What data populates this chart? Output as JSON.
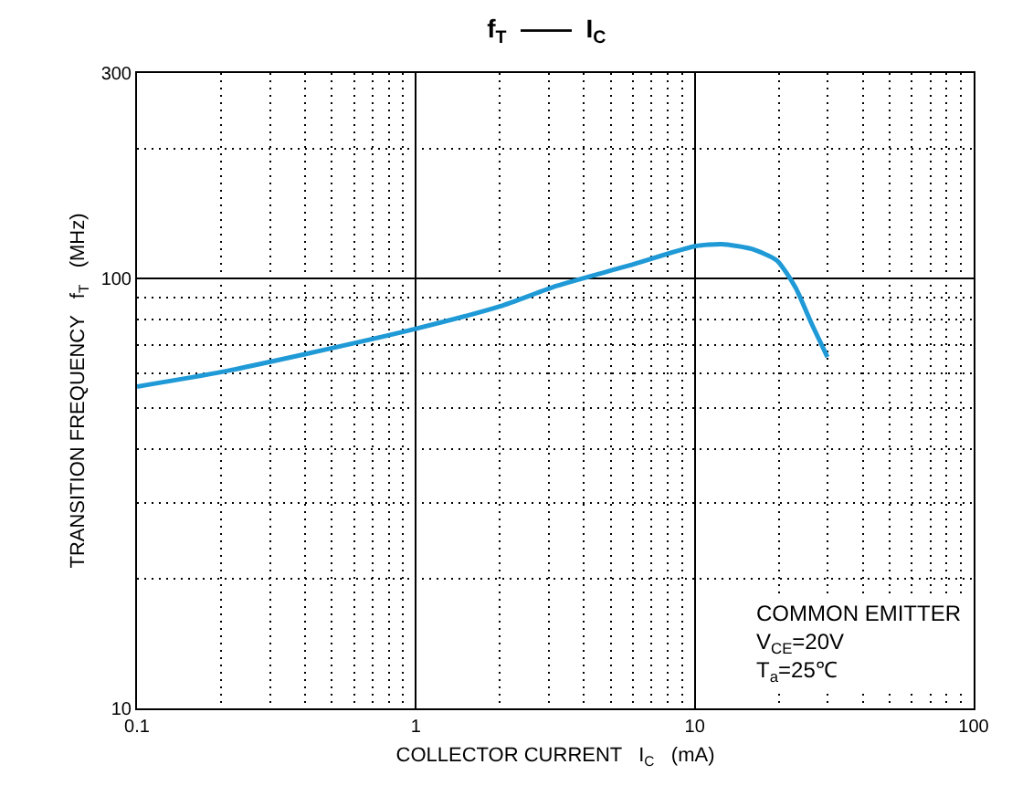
{
  "chart_data": {
    "type": "line",
    "title": "f$_{T}$  ——  I$_{C}$",
    "xlabel": "COLLECTOR CURRENT   I$_{C}$   (mA)",
    "ylabel": "TRANSITION FREQUENCY   f$_{T}$   (MHz)",
    "annotations": [
      "COMMON EMITTER",
      "V$_{CE}$=20V",
      "T$_{a}$=25℃"
    ],
    "log": "xy",
    "grid": true,
    "marker": "none",
    "line_style": "solid",
    "xlim": [
      0.1,
      100
    ],
    "xticks": [
      0.1,
      1,
      10,
      100
    ],
    "ylim": [
      10,
      300
    ],
    "yticks": [
      10,
      100,
      300
    ],
    "series": [
      {
        "color": "#1f9ad6",
        "x": [
          0.1,
          0.2,
          0.4,
          1,
          2,
          3.2,
          5.8,
          10,
          12.5,
          16,
          19.7,
          23,
          26.1,
          29.9
        ],
        "values": [
          56,
          60.5,
          66.6,
          76.3,
          86,
          96,
          107,
          118.7,
          120,
          117,
          110,
          95,
          79,
          65.6
        ]
      }
    ]
  }
}
